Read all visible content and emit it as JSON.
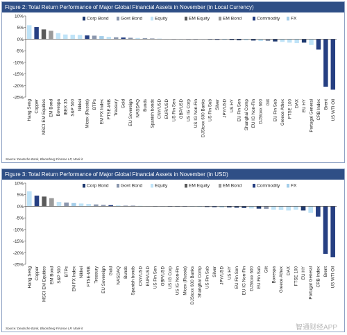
{
  "figures": [
    {
      "title": "Figure 2: Total Return Performance of Major Global Financial Assets in November (in Local Currency)",
      "source": "Source: Deutsche Bank, Bloomberg Finance LP, Mark-it"
    },
    {
      "title": "Figure 3: Total Return Performance of Major Global Financial Assets in November (in USD)",
      "source": "Source: Deutsche Bank, Bloomberg Finance LP, Mark-it"
    }
  ],
  "watermark": "智通财经APP",
  "colors": {
    "title_bg": "#2f4f86",
    "Corp Bond": "#1f3a70",
    "Govt Bond": "#8a96ad",
    "Equity": "#bfe3f7",
    "EM Equity": "#5a5a5a",
    "EM Bond": "#9a9a9a",
    "Commodity": "#263f82",
    "FX": "#a3cde9"
  },
  "chart_data": [
    {
      "type": "bar",
      "legend": [
        "Corp Bond",
        "Govt Bond",
        "Equity",
        "EM Equity",
        "EM Bond",
        "Commodity",
        "FX"
      ],
      "legend_position": "top",
      "ylim": [
        -25,
        10
      ],
      "yticks": [
        "10%",
        "5%",
        "0%",
        "-5%",
        "-10%",
        "-15%",
        "-20%",
        "-25%"
      ],
      "categories": [
        "Hang Seng",
        "Copper",
        "MSCI EM Equities",
        "EM Bond",
        "Bovespa",
        "IBEX 35",
        "S&P 500",
        "Nikkei",
        "Micex (Russia)",
        "BTPs",
        "EM FX Index",
        "FTSE-MIB",
        "Treasury",
        "Gold",
        "EU Sovereign",
        "NASDAQ",
        "Bunds",
        "Spanish bonds",
        "CNY/USD",
        "EUR/USD",
        "US Fin Sen",
        "GBP/USD",
        "US IG Corp",
        "US IG Non-Fin",
        "DJStoxx 600 Banks",
        "US Fin Sub",
        "Silver",
        "JPY/USD",
        "US HY",
        "EU Fin Sen",
        "Shanghai Comp",
        "EU IG Non-Fin",
        "DJStoxx 600",
        "Gilt",
        "EU Fin Sub",
        "Greece Athex",
        "FTSE 100",
        "DAX",
        "EU HY",
        "Portugal General",
        "CRB Index",
        "Brent",
        "US WTI Oil"
      ],
      "groups": [
        "Equity",
        "Commodity",
        "EM Equity",
        "EM Bond",
        "Equity",
        "Equity",
        "Equity",
        "Equity",
        "Commodity",
        "Govt Bond",
        "FX",
        "Equity",
        "Govt Bond",
        "Commodity",
        "Govt Bond",
        "Equity",
        "Govt Bond",
        "Govt Bond",
        "FX",
        "FX",
        "Corp Bond",
        "FX",
        "Corp Bond",
        "Corp Bond",
        "Equity",
        "Corp Bond",
        "Commodity",
        "FX",
        "Corp Bond",
        "Corp Bond",
        "Equity",
        "Corp Bond",
        "Equity",
        "Govt Bond",
        "Corp Bond",
        "Equity",
        "Equity",
        "Equity",
        "Corp Bond",
        "Equity",
        "Commodity",
        "Commodity",
        "Commodity"
      ],
      "values": [
        6.0,
        5.2,
        4.2,
        3.6,
        2.6,
        2.0,
        1.9,
        1.8,
        1.6,
        1.5,
        1.3,
        1.0,
        0.8,
        0.7,
        0.6,
        0.5,
        0.4,
        0.3,
        0.2,
        0.1,
        0.1,
        0.05,
        0.0,
        -0.05,
        -0.1,
        -0.2,
        -0.3,
        -0.3,
        -0.4,
        -0.5,
        -0.5,
        -0.6,
        -0.8,
        -0.8,
        -1.0,
        -1.2,
        -1.5,
        -1.7,
        -1.5,
        -2.5,
        -4.5,
        -20.5,
        -21.8
      ]
    },
    {
      "type": "bar",
      "legend": [
        "Corp Bond",
        "Govt Bond",
        "Equity",
        "EM Equity",
        "EM Bond",
        "Commodity",
        "FX"
      ],
      "legend_position": "top",
      "ylim": [
        -25,
        10
      ],
      "yticks": [
        "10%",
        "5%",
        "0%",
        "-5%",
        "-10%",
        "-15%",
        "-20%",
        "-25%"
      ],
      "categories": [
        "Hang Seng",
        "Copper",
        "MSCI EM Equities",
        "EM Bond",
        "S&P 500",
        "BTPs",
        "EM FX Index",
        "Nikkei",
        "FTSE-MIB",
        "Treasury",
        "EU Sovereign",
        "Gold",
        "NASDAQ",
        "Bunds",
        "Spanish bonds",
        "CNY/USD",
        "EUR/USD",
        "US Fin Sen",
        "GBP/USD",
        "US IG Corp",
        "US IG Non-Fin",
        "Micex (Russia)",
        "DJStoxx 600 Banks",
        "Shanghai Comp",
        "US Fin Sub",
        "Silver",
        "JPY/USD",
        "US HY",
        "EU Fin Sen",
        "EU IG Non-Fin",
        "DJStoxx 600",
        "EU Fin Sub",
        "Gilt",
        "Bovespa",
        "Greece Athex",
        "DAX",
        "FTSE 100",
        "EU HY",
        "Portugal General",
        "CRB Index",
        "Brent",
        "US WTI Oil"
      ],
      "groups": [
        "Equity",
        "Commodity",
        "EM Equity",
        "EM Bond",
        "Equity",
        "Govt Bond",
        "FX",
        "Equity",
        "Equity",
        "Govt Bond",
        "Govt Bond",
        "Commodity",
        "Equity",
        "Govt Bond",
        "Govt Bond",
        "FX",
        "FX",
        "Corp Bond",
        "FX",
        "Corp Bond",
        "Corp Bond",
        "Commodity",
        "Equity",
        "Equity",
        "Corp Bond",
        "Commodity",
        "FX",
        "Corp Bond",
        "Corp Bond",
        "Corp Bond",
        "Equity",
        "Corp Bond",
        "Govt Bond",
        "Equity",
        "Equity",
        "Equity",
        "Equity",
        "Corp Bond",
        "Equity",
        "Commodity",
        "Commodity",
        "Commodity"
      ],
      "values": [
        6.5,
        4.6,
        4.2,
        3.5,
        1.9,
        1.6,
        1.4,
        1.2,
        1.0,
        0.8,
        0.6,
        0.5,
        0.4,
        0.3,
        0.3,
        0.2,
        0.1,
        0.1,
        0.05,
        0.0,
        -0.05,
        -0.1,
        -0.2,
        -0.3,
        -0.3,
        -0.4,
        -0.5,
        -0.5,
        -0.6,
        -0.7,
        -0.9,
        -1.0,
        -1.1,
        -1.5,
        -1.6,
        -1.8,
        -1.5,
        -1.8,
        -2.8,
        -4.5,
        -20.5,
        -22.0
      ]
    }
  ]
}
